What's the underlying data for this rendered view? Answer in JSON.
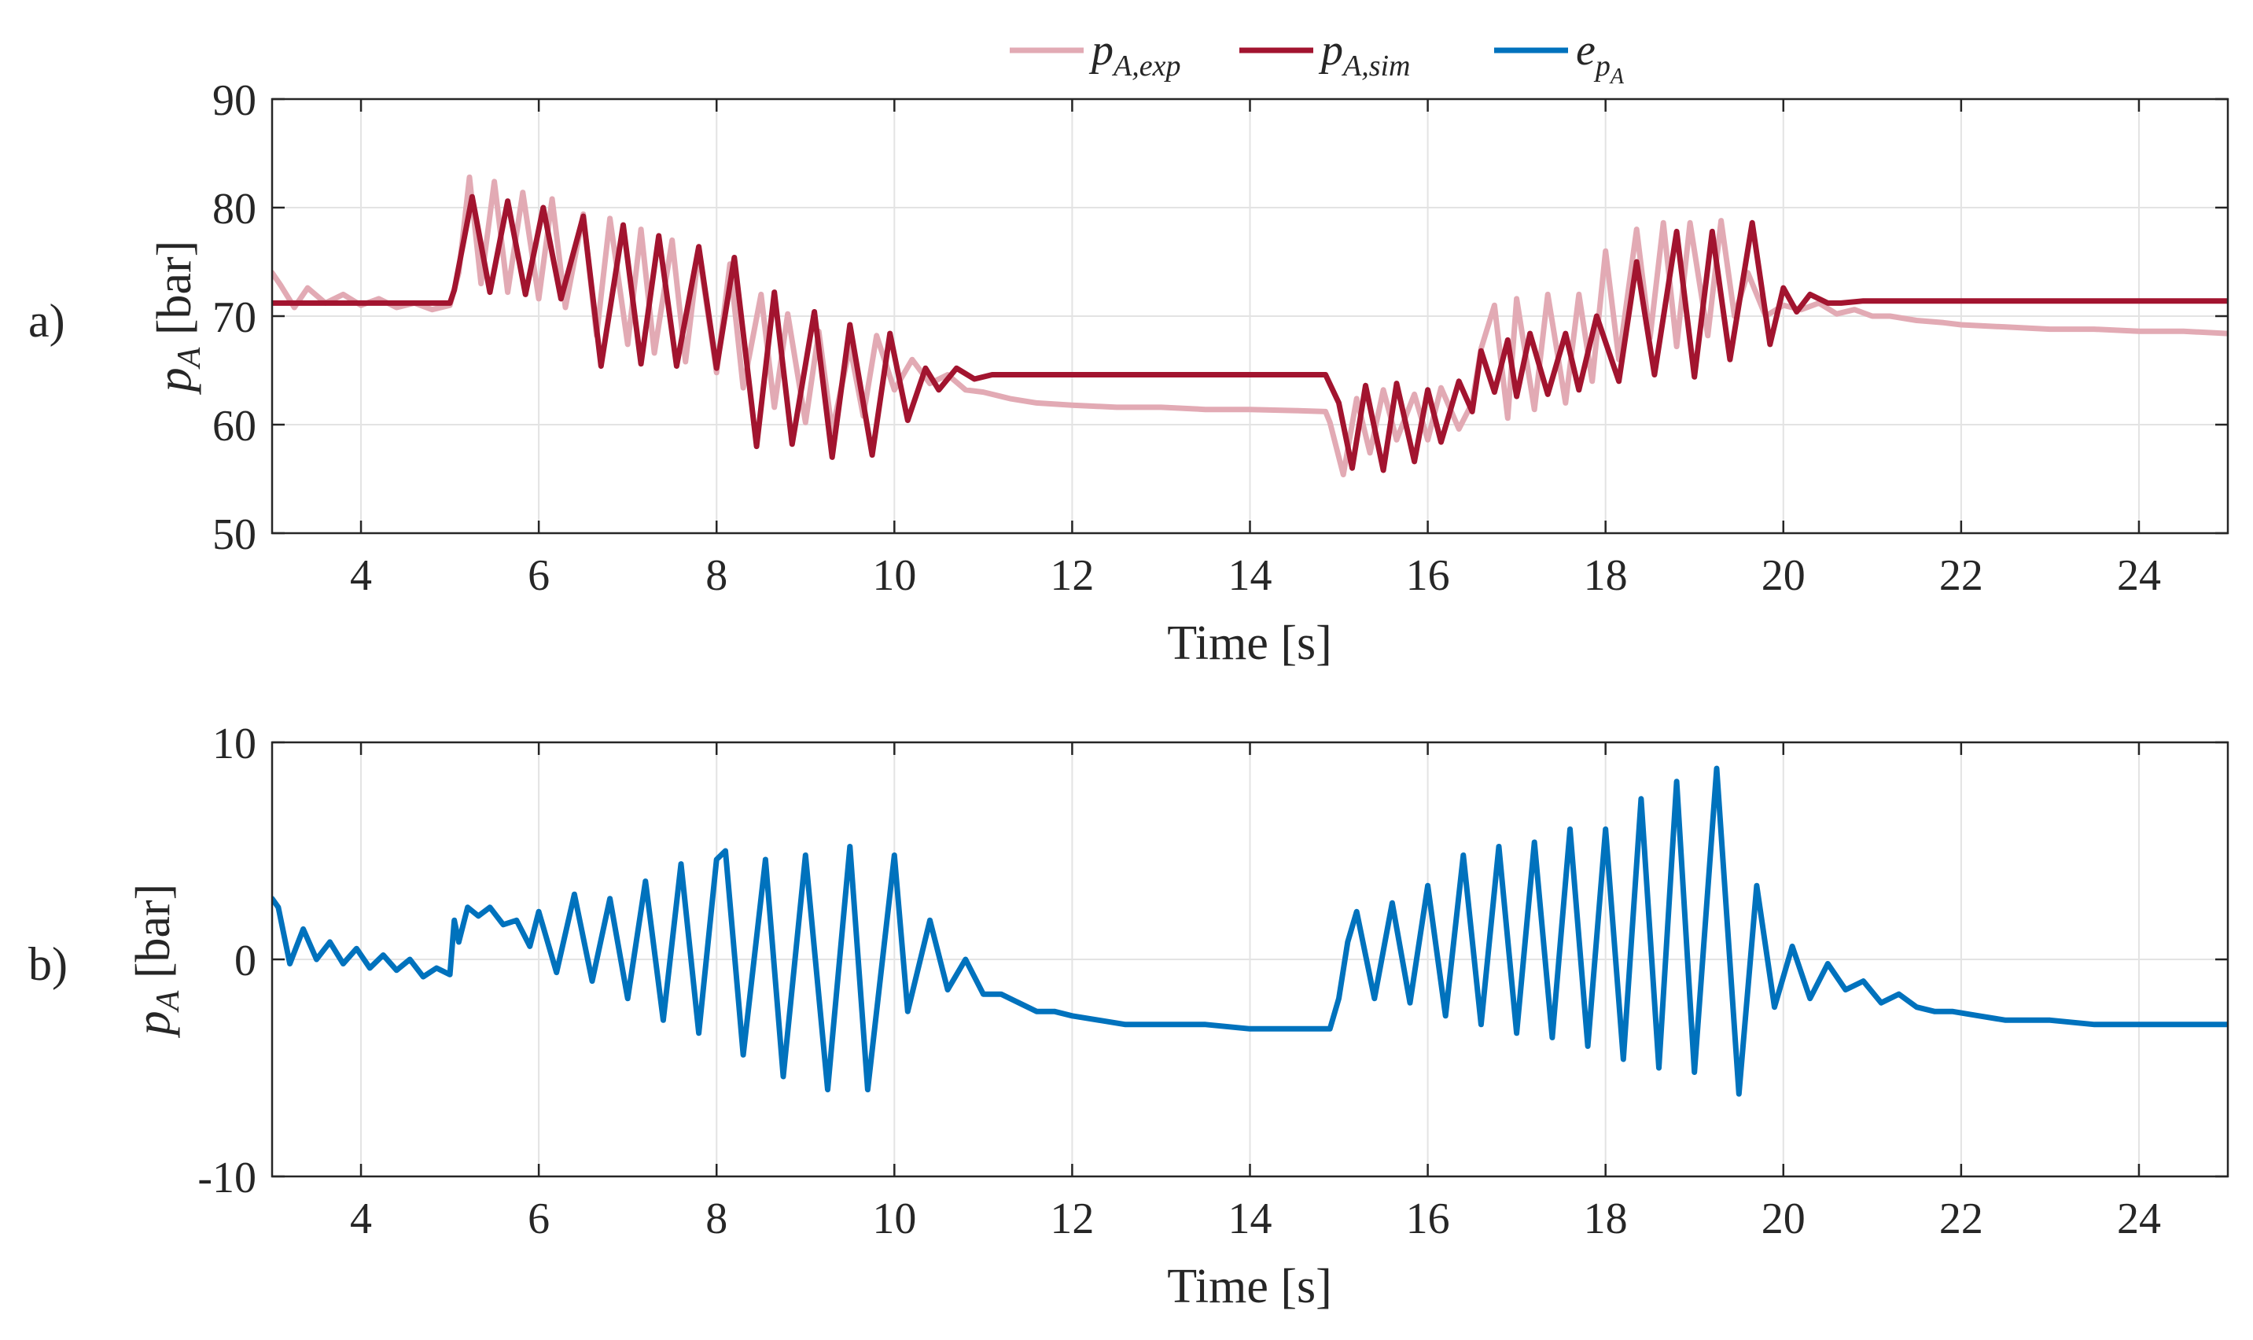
{
  "chart_data": [
    {
      "type": "line",
      "panel_label": "a)",
      "xlabel": "Time [s]",
      "ylabel": "p",
      "ylabel_sub": "A",
      "ylabel_unit": "[bar]",
      "xlim": [
        3,
        25
      ],
      "ylim": [
        50,
        90
      ],
      "xticks": [
        4,
        6,
        8,
        10,
        12,
        14,
        16,
        18,
        20,
        22,
        24
      ],
      "yticks": [
        50,
        60,
        70,
        80,
        90
      ],
      "ytick_labels": [
        "50",
        "60",
        "70",
        "80",
        "90"
      ],
      "grid": true,
      "legend": {
        "location": "top-center (above panel a)",
        "entries": [
          {
            "symbol": "p",
            "subscript": "A,exp",
            "color": "#e2aab4"
          },
          {
            "symbol": "p",
            "subscript": "A,sim",
            "color": "#a2142f"
          },
          {
            "symbol": "e",
            "subscript": "p",
            "subsubscript": "A",
            "color": "#0072bd"
          }
        ]
      },
      "series": [
        {
          "name": "p_A,exp",
          "color": "#e2aab4",
          "x": [
            3.0,
            3.1,
            3.25,
            3.4,
            3.6,
            3.8,
            4.0,
            4.2,
            4.4,
            4.6,
            4.8,
            5.0,
            5.1,
            5.22,
            5.35,
            5.5,
            5.65,
            5.82,
            6.0,
            6.15,
            6.3,
            6.5,
            6.65,
            6.8,
            7.0,
            7.15,
            7.3,
            7.5,
            7.65,
            7.8,
            8.0,
            8.15,
            8.3,
            8.5,
            8.65,
            8.8,
            9.0,
            9.15,
            9.3,
            9.5,
            9.65,
            9.8,
            10.0,
            10.2,
            10.4,
            10.6,
            10.8,
            11.0,
            11.3,
            11.6,
            12.0,
            12.5,
            13.0,
            13.5,
            14.0,
            14.5,
            14.85,
            14.9,
            15.05,
            15.2,
            15.35,
            15.5,
            15.65,
            15.85,
            16.0,
            16.15,
            16.35,
            16.5,
            16.6,
            16.75,
            16.9,
            17.0,
            17.2,
            17.35,
            17.55,
            17.7,
            17.85,
            18.0,
            18.15,
            18.35,
            18.5,
            18.65,
            18.8,
            18.95,
            19.15,
            19.3,
            19.45,
            19.6,
            19.8,
            20.0,
            20.2,
            20.4,
            20.6,
            20.8,
            21.0,
            21.2,
            21.5,
            21.8,
            22.0,
            22.5,
            23.0,
            23.5,
            24.0,
            24.5,
            25.0
          ],
          "values": [
            74.0,
            72.8,
            70.8,
            72.6,
            71.2,
            72.0,
            71.0,
            71.6,
            70.8,
            71.2,
            70.6,
            71.0,
            74.0,
            82.8,
            73.0,
            82.4,
            72.2,
            81.4,
            71.6,
            80.8,
            70.8,
            79.4,
            68.2,
            79.0,
            67.4,
            78.0,
            66.6,
            77.0,
            65.8,
            76.0,
            64.8,
            74.8,
            63.4,
            72.0,
            61.6,
            70.2,
            60.2,
            68.6,
            59.4,
            67.2,
            60.8,
            68.2,
            63.2,
            66.0,
            63.8,
            64.6,
            63.2,
            63.0,
            62.4,
            62.0,
            61.8,
            61.6,
            61.6,
            61.4,
            61.4,
            61.3,
            61.2,
            60.2,
            55.4,
            62.4,
            57.4,
            63.2,
            58.6,
            62.8,
            58.6,
            63.4,
            59.6,
            62.0,
            67.0,
            71.0,
            60.6,
            71.6,
            61.4,
            72.0,
            62.0,
            72.0,
            64.0,
            76.0,
            66.0,
            78.0,
            68.0,
            78.6,
            67.2,
            78.6,
            68.2,
            78.8,
            70.0,
            74.0,
            70.0,
            71.0,
            70.6,
            71.2,
            70.2,
            70.6,
            70.0,
            70.0,
            69.6,
            69.4,
            69.2,
            69.0,
            68.8,
            68.8,
            68.6,
            68.6,
            68.4
          ]
        },
        {
          "name": "p_A,sim",
          "color": "#a2142f",
          "x": [
            3.0,
            5.0,
            5.05,
            5.25,
            5.45,
            5.65,
            5.85,
            6.05,
            6.25,
            6.5,
            6.7,
            6.95,
            7.15,
            7.35,
            7.55,
            7.8,
            8.0,
            8.2,
            8.45,
            8.65,
            8.85,
            9.1,
            9.3,
            9.5,
            9.75,
            9.95,
            10.15,
            10.35,
            10.5,
            10.7,
            10.9,
            11.1,
            11.4,
            12.0,
            13.0,
            14.0,
            14.85,
            15.0,
            15.15,
            15.3,
            15.5,
            15.65,
            15.85,
            16.0,
            16.15,
            16.35,
            16.5,
            16.6,
            16.75,
            16.9,
            17.0,
            17.15,
            17.35,
            17.55,
            17.7,
            17.9,
            18.15,
            18.35,
            18.55,
            18.8,
            19.0,
            19.2,
            19.4,
            19.65,
            19.85,
            20.0,
            20.15,
            20.3,
            20.5,
            20.65,
            20.9,
            21.1,
            22.0,
            23.0,
            24.0,
            25.0
          ],
          "values": [
            71.2,
            71.2,
            72.4,
            81.0,
            72.2,
            80.6,
            72.0,
            80.0,
            71.6,
            79.2,
            65.4,
            78.4,
            65.6,
            77.4,
            65.4,
            76.4,
            65.2,
            75.4,
            58.0,
            72.2,
            58.2,
            70.4,
            57.0,
            69.2,
            57.2,
            68.4,
            60.4,
            65.2,
            63.2,
            65.2,
            64.2,
            64.6,
            64.6,
            64.6,
            64.6,
            64.6,
            64.6,
            62.0,
            56.0,
            63.6,
            55.8,
            63.8,
            56.6,
            63.2,
            58.4,
            64.0,
            61.2,
            66.8,
            63.0,
            67.8,
            62.6,
            68.4,
            62.8,
            68.4,
            63.2,
            70.0,
            64.0,
            75.0,
            64.6,
            77.8,
            64.4,
            77.8,
            66.0,
            78.6,
            67.4,
            72.6,
            70.4,
            72.0,
            71.2,
            71.2,
            71.4,
            71.4,
            71.4,
            71.4,
            71.4,
            71.4
          ]
        }
      ]
    },
    {
      "type": "line",
      "panel_label": "b)",
      "xlabel": "Time [s]",
      "ylabel": "p",
      "ylabel_sub": "A",
      "ylabel_unit": "[bar]",
      "xlim": [
        3,
        25
      ],
      "ylim": [
        -10,
        10
      ],
      "xticks": [
        4,
        6,
        8,
        10,
        12,
        14,
        16,
        18,
        20,
        22,
        24
      ],
      "yticks": [
        -10,
        0,
        10
      ],
      "ytick_labels": [
        "-10",
        "0",
        "10"
      ],
      "grid": true,
      "series": [
        {
          "name": "e_pA",
          "color": "#0072bd",
          "x": [
            3.0,
            3.07,
            3.2,
            3.35,
            3.5,
            3.65,
            3.8,
            3.95,
            4.1,
            4.25,
            4.4,
            4.55,
            4.7,
            4.85,
            5.0,
            5.05,
            5.1,
            5.2,
            5.32,
            5.45,
            5.6,
            5.75,
            5.9,
            6.0,
            6.2,
            6.4,
            6.6,
            6.8,
            7.0,
            7.2,
            7.4,
            7.6,
            7.8,
            8.0,
            8.1,
            8.3,
            8.55,
            8.75,
            9.0,
            9.25,
            9.5,
            9.7,
            10.0,
            10.15,
            10.4,
            10.6,
            10.8,
            11.0,
            11.2,
            11.4,
            11.6,
            11.8,
            12.0,
            12.3,
            12.6,
            13.0,
            13.5,
            14.0,
            14.5,
            14.9,
            15.0,
            15.1,
            15.2,
            15.4,
            15.6,
            15.8,
            16.0,
            16.2,
            16.4,
            16.6,
            16.8,
            17.0,
            17.2,
            17.4,
            17.6,
            17.8,
            18.0,
            18.2,
            18.4,
            18.6,
            18.8,
            19.0,
            19.25,
            19.5,
            19.7,
            19.9,
            20.1,
            20.3,
            20.5,
            20.7,
            20.9,
            21.1,
            21.3,
            21.5,
            21.7,
            21.9,
            22.2,
            22.5,
            23.0,
            23.5,
            24.0,
            24.5,
            25.0
          ],
          "values": [
            2.8,
            2.4,
            -0.2,
            1.4,
            0.0,
            0.8,
            -0.2,
            0.5,
            -0.4,
            0.2,
            -0.5,
            0.0,
            -0.8,
            -0.4,
            -0.7,
            1.8,
            0.8,
            2.4,
            2.0,
            2.4,
            1.6,
            1.8,
            0.6,
            2.2,
            -0.6,
            3.0,
            -1.0,
            2.8,
            -1.8,
            3.6,
            -2.8,
            4.4,
            -3.4,
            4.6,
            5.0,
            -4.4,
            4.6,
            -5.4,
            4.8,
            -6.0,
            5.2,
            -6.0,
            4.8,
            -2.4,
            1.8,
            -1.4,
            0.0,
            -1.6,
            -1.6,
            -2.0,
            -2.4,
            -2.4,
            -2.6,
            -2.8,
            -3.0,
            -3.0,
            -3.0,
            -3.2,
            -3.2,
            -3.2,
            -1.8,
            0.8,
            2.2,
            -1.8,
            2.6,
            -2.0,
            3.4,
            -2.6,
            4.8,
            -3.0,
            5.2,
            -3.4,
            5.4,
            -3.6,
            6.0,
            -4.0,
            6.0,
            -4.6,
            7.4,
            -5.0,
            8.2,
            -5.2,
            8.8,
            -6.2,
            3.4,
            -2.2,
            0.6,
            -1.8,
            -0.2,
            -1.4,
            -1.0,
            -2.0,
            -1.6,
            -2.2,
            -2.4,
            -2.4,
            -2.6,
            -2.8,
            -2.8,
            -3.0,
            -3.0,
            -3.0,
            -3.0
          ]
        }
      ]
    }
  ]
}
